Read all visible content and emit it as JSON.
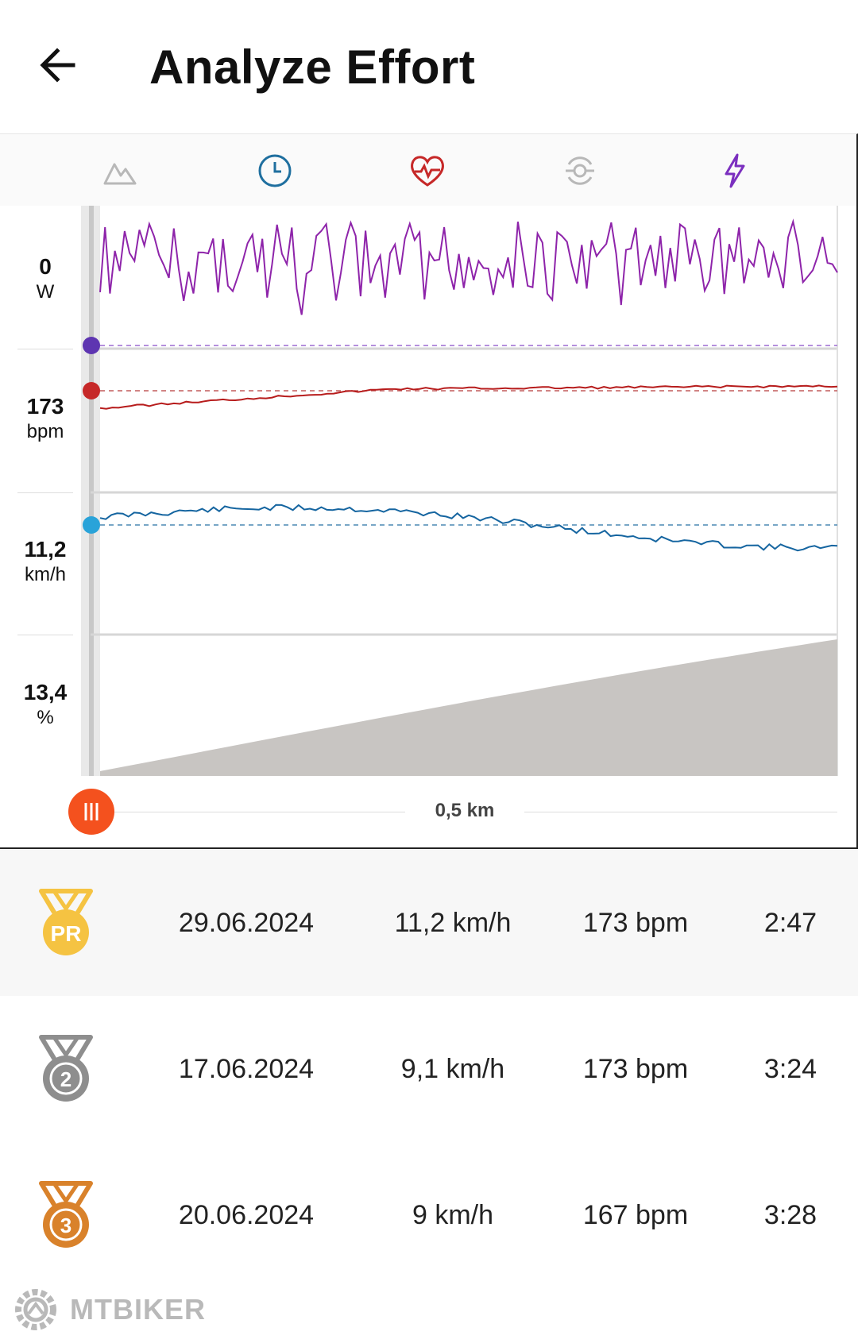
{
  "header": {
    "title": "Analyze Effort"
  },
  "tabs": [
    {
      "name": "elevation",
      "icon": "mountain-icon",
      "color": "#b8b8b8"
    },
    {
      "name": "time",
      "icon": "clock-icon",
      "color": "#1f6f9f"
    },
    {
      "name": "heart-rate",
      "icon": "heart-rate-icon",
      "color": "#c62828"
    },
    {
      "name": "cadence",
      "icon": "cadence-icon",
      "color": "#b8b8b8"
    },
    {
      "name": "power",
      "icon": "lightning-icon",
      "color": "#7b2fbf"
    }
  ],
  "chart": {
    "rows": [
      {
        "value": "0",
        "unit": "W",
        "color": "#8e24aa",
        "marker_color": "#5e35b1"
      },
      {
        "value": "173",
        "unit": "bpm",
        "color": "#b71c1c",
        "marker_color": "#c62828"
      },
      {
        "value": "11,2",
        "unit": "km/h",
        "color": "#1565a0",
        "marker_color": "#29a3d9"
      },
      {
        "value": "13,4",
        "unit": "%",
        "color": "#c8c5c2"
      }
    ],
    "distance_label": "0,5 km"
  },
  "efforts": [
    {
      "rank": "PR",
      "medal": "gold",
      "date": "29.06.2024",
      "speed": "11,2 km/h",
      "heart_rate": "173 bpm",
      "time": "2:47"
    },
    {
      "rank": "2",
      "medal": "silver",
      "date": "17.06.2024",
      "speed": "9,1 km/h",
      "heart_rate": "173 bpm",
      "time": "3:24"
    },
    {
      "rank": "3",
      "medal": "bronze",
      "date": "20.06.2024",
      "speed": "9 km/h",
      "heart_rate": "167 bpm",
      "time": "3:28"
    }
  ],
  "watermark": {
    "text": "MTBIKER"
  }
}
